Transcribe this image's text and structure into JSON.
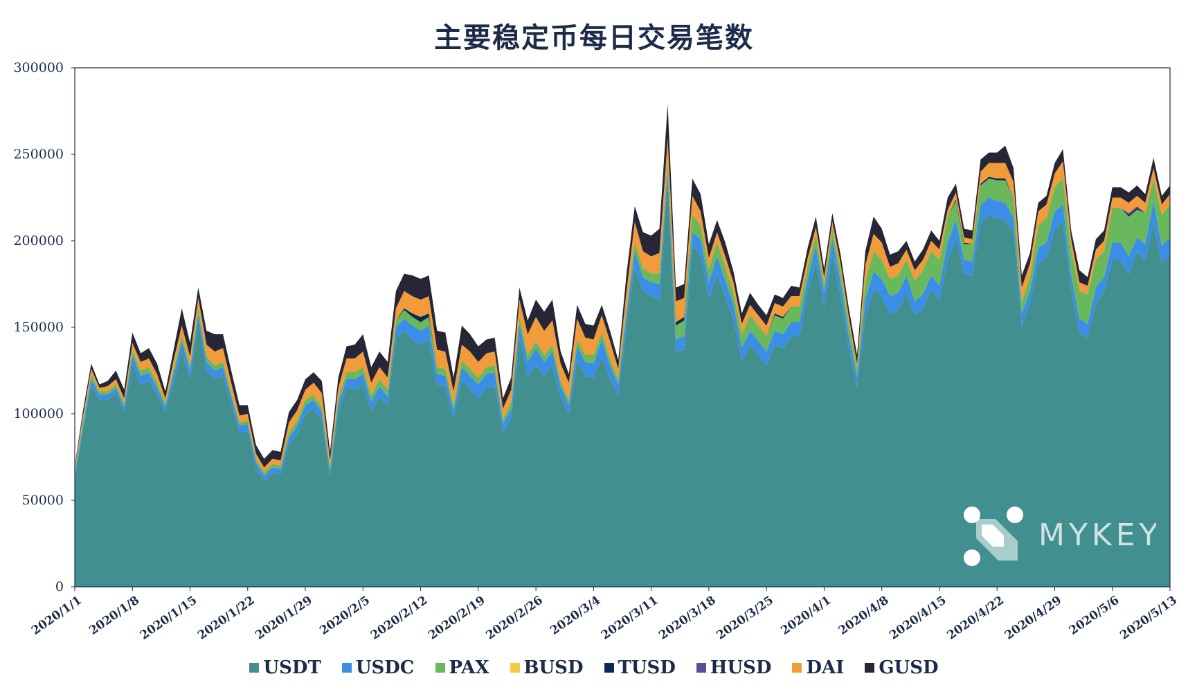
{
  "title": "主要稳定币每日交易笔数",
  "brand": {
    "text": "MYKEY"
  },
  "chart_data": {
    "type": "area",
    "stacked": true,
    "title": "主要稳定币每日交易笔数",
    "xlabel": "",
    "ylabel": "",
    "ylim": [
      0,
      300000
    ],
    "y_ticks": [
      0,
      50000,
      100000,
      150000,
      200000,
      250000,
      300000
    ],
    "x_tick_labels": [
      "2020/1/1",
      "2020/1/8",
      "2020/1/15",
      "2020/1/22",
      "2020/1/29",
      "2020/2/5",
      "2020/2/12",
      "2020/2/19",
      "2020/2/26",
      "2020/3/4",
      "2020/3/11",
      "2020/3/18",
      "2020/3/25",
      "2020/4/1",
      "2020/4/8",
      "2020/4/15",
      "2020/4/22",
      "2020/4/29",
      "2020/5/6",
      "2020/5/13"
    ],
    "x_start": "2020/1/1",
    "x_end": "2020/5/13",
    "legend_position": "bottom",
    "grid": false,
    "colors": {
      "USDT": "#418f8f",
      "USDC": "#3b8ee8",
      "PAX": "#69b85b",
      "BUSD": "#f7c945",
      "TUSD": "#0f2757",
      "HUSD": "#5a4f9d",
      "DAI": "#f19b3a",
      "GUSD": "#262637"
    },
    "series": [
      {
        "name": "USDT",
        "values": [
          63000,
          90000,
          116000,
          108000,
          108000,
          112000,
          101000,
          129000,
          117000,
          119000,
          111000,
          101000,
          118000,
          136000,
          120000,
          154000,
          125000,
          120000,
          122000,
          106000,
          89000,
          90000,
          68000,
          61000,
          66000,
          65000,
          82000,
          88000,
          100000,
          103000,
          96000,
          64000,
          101000,
          115000,
          114000,
          117000,
          102000,
          110000,
          105000,
          144000,
          148000,
          143000,
          140000,
          143000,
          117000,
          116000,
          97000,
          120000,
          114000,
          109000,
          115000,
          116000,
          89000,
          97000,
          144000,
          122000,
          128000,
          122000,
          128000,
          110000,
          100000,
          131000,
          122000,
          121000,
          133000,
          120000,
          111000,
          150000,
          185000,
          171000,
          168000,
          166000,
          236000,
          136000,
          137000,
          197000,
          192000,
          167000,
          181000,
          168000,
          155000,
          130000,
          140000,
          134000,
          128000,
          140000,
          138000,
          145000,
          145000,
          170000,
          188000,
          162000,
          192000,
          168000,
          138000,
          115000,
          157000,
          172000,
          168000,
          158000,
          160000,
          170000,
          157000,
          161000,
          172000,
          166000,
          189000,
          202000,
          181000,
          180000,
          211000,
          215000,
          213000,
          212000,
          205000,
          151000,
          164000,
          187000,
          190000,
          207000,
          211000,
          172000,
          147000,
          144000,
          164000,
          171000,
          189000,
          189000,
          181000,
          194000,
          188000,
          211000,
          187000,
          192000
        ]
      },
      {
        "name": "USDC",
        "values": [
          2000,
          3000,
          4000,
          3000,
          3000,
          3000,
          3000,
          5000,
          5000,
          5000,
          4000,
          3000,
          5000,
          6000,
          5000,
          4000,
          5000,
          5000,
          5000,
          4000,
          4000,
          4000,
          4000,
          3000,
          3000,
          3000,
          4000,
          5000,
          5000,
          5000,
          5000,
          3000,
          5000,
          5000,
          6000,
          6000,
          5000,
          6000,
          5000,
          6000,
          7000,
          8000,
          8000,
          8000,
          6000,
          6000,
          5000,
          7000,
          8000,
          8000,
          8000,
          8000,
          5000,
          6000,
          8000,
          8000,
          10000,
          8000,
          8000,
          6000,
          5000,
          8000,
          8000,
          8000,
          10000,
          8000,
          6000,
          7000,
          9000,
          8000,
          8000,
          9000,
          5000,
          7000,
          8000,
          8000,
          9000,
          9000,
          10000,
          9000,
          8000,
          8000,
          8000,
          8000,
          8000,
          8000,
          8000,
          8000,
          8000,
          8000,
          9000,
          8000,
          9000,
          8000,
          7000,
          6000,
          9000,
          10000,
          10000,
          10000,
          10000,
          10000,
          8000,
          8000,
          8000,
          8000,
          10000,
          10000,
          8000,
          8000,
          10000,
          10000,
          10000,
          10000,
          8000,
          7000,
          7000,
          9000,
          9000,
          10000,
          10000,
          8000,
          8000,
          8000,
          9000,
          8000,
          10000,
          10000,
          10000,
          8000,
          10000,
          12000,
          10000,
          10000
        ]
      },
      {
        "name": "PAX",
        "values": [
          2000,
          3000,
          3000,
          2000,
          2000,
          2000,
          2000,
          3000,
          3000,
          3000,
          3000,
          2000,
          3000,
          3000,
          3000,
          3000,
          3000,
          3000,
          3000,
          2000,
          2000,
          2000,
          2000,
          2000,
          2000,
          2000,
          3000,
          3000,
          3000,
          3000,
          3000,
          2000,
          3000,
          4000,
          4000,
          4000,
          4000,
          4000,
          4000,
          4000,
          5000,
          5000,
          5000,
          5000,
          4000,
          4000,
          3000,
          4000,
          4000,
          4000,
          4000,
          4000,
          3000,
          4000,
          4000,
          4000,
          4000,
          4000,
          4000,
          3000,
          3000,
          4000,
          4000,
          5000,
          4000,
          4000,
          3000,
          4000,
          5000,
          5000,
          5000,
          6000,
          6000,
          8000,
          9000,
          10000,
          8000,
          8000,
          8000,
          8000,
          7000,
          8000,
          9000,
          9000,
          9000,
          9000,
          9000,
          9000,
          9000,
          7000,
          6000,
          5000,
          6000,
          7000,
          7000,
          5000,
          10000,
          12000,
          11000,
          10000,
          10000,
          9000,
          12000,
          14000,
          14000,
          15000,
          15000,
          11000,
          9000,
          10000,
          11000,
          11000,
          12000,
          13000,
          12000,
          7000,
          8000,
          13000,
          14000,
          14000,
          15000,
          15000,
          16000,
          17000,
          16000,
          15000,
          20000,
          20000,
          23000,
          16000,
          18000,
          13000,
          18000,
          19000
        ]
      },
      {
        "name": "BUSD",
        "values": [
          0,
          0,
          0,
          0,
          0,
          0,
          0,
          0,
          0,
          0,
          0,
          0,
          0,
          0,
          0,
          0,
          0,
          0,
          0,
          0,
          0,
          0,
          0,
          0,
          0,
          0,
          0,
          0,
          0,
          0,
          0,
          0,
          0,
          0,
          0,
          0,
          0,
          0,
          0,
          0,
          0,
          0,
          0,
          0,
          0,
          0,
          0,
          0,
          0,
          0,
          0,
          0,
          0,
          0,
          0,
          0,
          0,
          0,
          0,
          0,
          0,
          0,
          0,
          0,
          0,
          0,
          0,
          0,
          0,
          0,
          0,
          0,
          0,
          0,
          0,
          0,
          0,
          0,
          0,
          0,
          0,
          0,
          0,
          0,
          0,
          0,
          0,
          0,
          0,
          0,
          0,
          0,
          0,
          0,
          0,
          0,
          0,
          0,
          0,
          0,
          0,
          0,
          0,
          0,
          0,
          0,
          0,
          0,
          0,
          0,
          0,
          0,
          0,
          0,
          0,
          0,
          0,
          0,
          0,
          0,
          0,
          0,
          0,
          0,
          0,
          0,
          0,
          0,
          0,
          0,
          0,
          0,
          0,
          0
        ]
      },
      {
        "name": "TUSD",
        "values": [
          0,
          0,
          0,
          0,
          0,
          0,
          0,
          0,
          0,
          0,
          0,
          0,
          0,
          0,
          0,
          0,
          0,
          0,
          0,
          0,
          0,
          0,
          0,
          0,
          0,
          0,
          0,
          0,
          0,
          0,
          0,
          0,
          0,
          0,
          0,
          0,
          0,
          0,
          0,
          0,
          1000,
          2000,
          3000,
          2000,
          0,
          0,
          0,
          0,
          0,
          0,
          0,
          0,
          0,
          0,
          0,
          0,
          0,
          0,
          0,
          0,
          0,
          0,
          0,
          0,
          0,
          0,
          0,
          0,
          0,
          0,
          0,
          0,
          0,
          2000,
          2000,
          0,
          0,
          0,
          0,
          0,
          0,
          0,
          0,
          0,
          0,
          1000,
          1000,
          0,
          0,
          0,
          0,
          0,
          0,
          0,
          0,
          0,
          0,
          0,
          0,
          0,
          0,
          0,
          0,
          0,
          0,
          0,
          0,
          1000,
          1000,
          0,
          1000,
          1000,
          1000,
          1000,
          0,
          0,
          0,
          0,
          0,
          0,
          0,
          0,
          0,
          0,
          0,
          0,
          0,
          0,
          1000,
          1000,
          0,
          0,
          0,
          0
        ]
      },
      {
        "name": "HUSD",
        "values": [
          0,
          0,
          0,
          0,
          0,
          0,
          0,
          0,
          0,
          0,
          0,
          0,
          0,
          0,
          0,
          0,
          0,
          0,
          0,
          0,
          0,
          0,
          0,
          0,
          0,
          0,
          0,
          0,
          0,
          0,
          0,
          0,
          0,
          0,
          0,
          0,
          0,
          0,
          0,
          0,
          0,
          0,
          0,
          0,
          0,
          0,
          0,
          0,
          0,
          0,
          0,
          0,
          0,
          0,
          0,
          0,
          0,
          0,
          0,
          0,
          0,
          0,
          0,
          0,
          0,
          0,
          0,
          0,
          0,
          0,
          0,
          0,
          0,
          0,
          0,
          0,
          0,
          0,
          0,
          0,
          0,
          0,
          0,
          0,
          0,
          0,
          0,
          0,
          0,
          0,
          0,
          0,
          0,
          0,
          0,
          0,
          0,
          0,
          0,
          0,
          0,
          0,
          0,
          0,
          0,
          0,
          0,
          0,
          0,
          0,
          0,
          0,
          0,
          0,
          0,
          0,
          0,
          0,
          0,
          0,
          0,
          0,
          0,
          0,
          0,
          0,
          0,
          0,
          1000,
          1000,
          0,
          0,
          0,
          0
        ]
      },
      {
        "name": "DAI",
        "values": [
          2000,
          3000,
          3000,
          2000,
          3000,
          3000,
          3000,
          4000,
          5000,
          5000,
          5000,
          3000,
          5000,
          6000,
          5000,
          6000,
          7000,
          8000,
          8000,
          6000,
          4000,
          4000,
          3000,
          3000,
          3000,
          3000,
          6000,
          6000,
          6000,
          7000,
          8000,
          4000,
          6000,
          8000,
          8000,
          9000,
          7000,
          7000,
          7000,
          7000,
          10000,
          10000,
          10000,
          10000,
          10000,
          10000,
          8000,
          9000,
          10000,
          9000,
          8000,
          8000,
          6000,
          7000,
          10000,
          12000,
          14000,
          14000,
          14000,
          10000,
          10000,
          12000,
          10000,
          9000,
          10000,
          10000,
          6000,
          10000,
          12000,
          10000,
          10000,
          12000,
          12000,
          12000,
          11000,
          11000,
          8000,
          6000,
          6000,
          6000,
          6000,
          6000,
          6000,
          6000,
          6000,
          6000,
          6000,
          6000,
          6000,
          5000,
          5000,
          4000,
          4000,
          4000,
          4000,
          3000,
          10000,
          10000,
          10000,
          7000,
          7000,
          6000,
          6000,
          6000,
          6000,
          6000,
          4000,
          4000,
          3000,
          3000,
          7000,
          8000,
          9000,
          9000,
          9000,
          8000,
          8000,
          8000,
          8000,
          8000,
          10000,
          6000,
          5000,
          5000,
          6000,
          6000,
          6000,
          6000,
          6000,
          6000,
          6000,
          6000,
          6000,
          6000
        ]
      },
      {
        "name": "GUSD",
        "values": [
          1000,
          3000,
          3000,
          2000,
          3000,
          5000,
          5000,
          6000,
          5000,
          6000,
          6000,
          4000,
          6000,
          10000,
          8000,
          6000,
          8000,
          10000,
          8000,
          7000,
          6000,
          5000,
          5000,
          5000,
          5000,
          5000,
          6000,
          6000,
          6000,
          6000,
          7000,
          5000,
          6000,
          7000,
          8000,
          10000,
          9000,
          9000,
          9000,
          10000,
          10000,
          12000,
          12000,
          12000,
          11000,
          11000,
          8000,
          11000,
          10000,
          9000,
          8000,
          8000,
          6000,
          7000,
          7000,
          8000,
          10000,
          11000,
          12000,
          7000,
          5000,
          8000,
          8000,
          8000,
          6000,
          6000,
          5000,
          10000,
          9000,
          11000,
          12000,
          14000,
          20000,
          8000,
          8000,
          10000,
          10000,
          8000,
          7000,
          8000,
          6000,
          6000,
          7000,
          6000,
          6000,
          5000,
          5000,
          6000,
          5000,
          6000,
          6000,
          5000,
          5000,
          5000,
          5000,
          5000,
          8000,
          10000,
          8000,
          7000,
          7000,
          5000,
          5000,
          6000,
          6000,
          5000,
          7000,
          5000,
          5000,
          5000,
          7000,
          6000,
          6000,
          10000,
          8000,
          7000,
          6000,
          5000,
          5000,
          6000,
          7000,
          5000,
          7000,
          5000,
          6000,
          6000,
          6000,
          6000,
          6000,
          6000,
          5000,
          6000,
          5000,
          5000
        ]
      }
    ]
  }
}
